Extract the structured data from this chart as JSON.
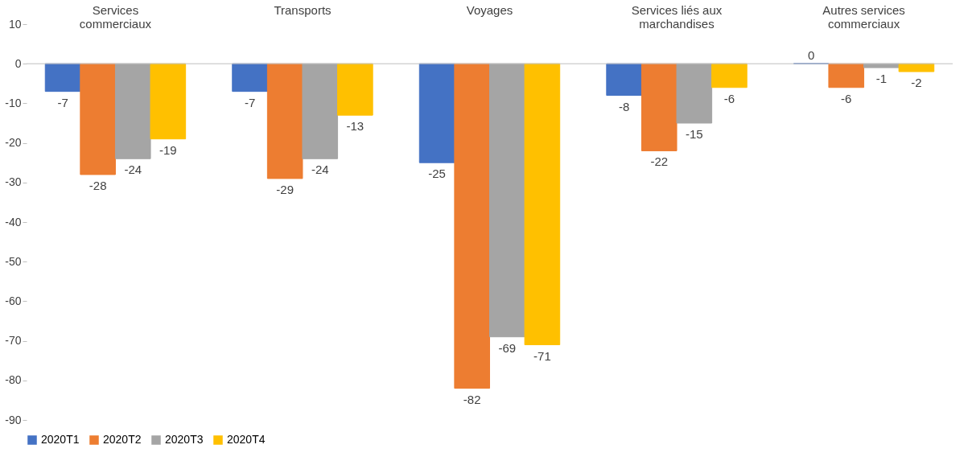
{
  "chart_data": {
    "type": "bar",
    "categories": [
      "Services commerciaux",
      "Transports",
      "Voyages",
      "Services liés aux marchandises",
      "Autres services commerciaux"
    ],
    "series": [
      {
        "name": "2020T1",
        "color": "#4472c4",
        "values": [
          -7,
          -7,
          -25,
          -8,
          0
        ]
      },
      {
        "name": "2020T2",
        "color": "#ed7d31",
        "values": [
          -28,
          -29,
          -82,
          -22,
          -6
        ]
      },
      {
        "name": "2020T3",
        "color": "#a5a5a5",
        "values": [
          -24,
          -24,
          -69,
          -15,
          -1
        ]
      },
      {
        "name": "2020T4",
        "color": "#ffc000",
        "values": [
          -19,
          -13,
          -71,
          -6,
          -2
        ]
      }
    ],
    "ylim": [
      -90,
      10
    ],
    "yticks": [
      -90,
      -80,
      -70,
      -60,
      -50,
      -40,
      -30,
      -20,
      -10,
      0,
      10
    ],
    "ref_lines": [
      {
        "axis": "y",
        "value": 0,
        "color": "#bfbfbf"
      }
    ],
    "data_labels": true,
    "grid": false,
    "legend": "bottom"
  }
}
